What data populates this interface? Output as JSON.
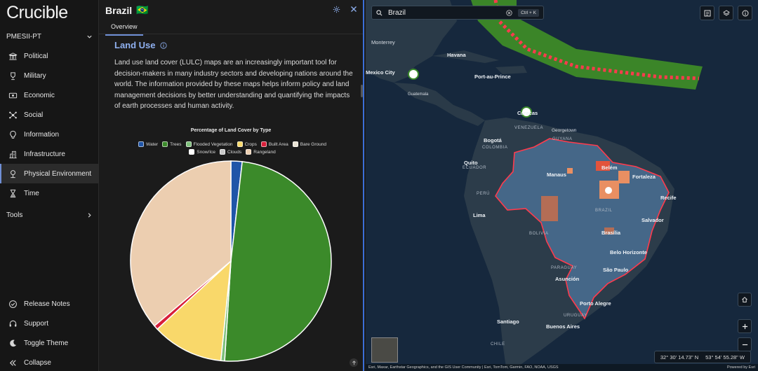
{
  "app": {
    "name": "Crucible"
  },
  "sidebar": {
    "workspace": "PMESII-PT",
    "items": [
      {
        "label": "Political",
        "icon": "columns-icon"
      },
      {
        "label": "Military",
        "icon": "trophy-icon"
      },
      {
        "label": "Economic",
        "icon": "money-icon"
      },
      {
        "label": "Social",
        "icon": "network-icon"
      },
      {
        "label": "Information",
        "icon": "lightbulb-icon"
      },
      {
        "label": "Infrastructure",
        "icon": "buildings-icon"
      },
      {
        "label": "Physical Environment",
        "icon": "landscape-icon",
        "active": true
      },
      {
        "label": "Time",
        "icon": "hourglass-icon"
      }
    ],
    "tools": "Tools",
    "bottom": [
      {
        "label": "Release Notes",
        "icon": "badge-check-icon"
      },
      {
        "label": "Support",
        "icon": "headset-icon"
      },
      {
        "label": "Toggle Theme",
        "icon": "moon-icon"
      },
      {
        "label": "Collapse",
        "icon": "chevrons-left-icon"
      }
    ]
  },
  "panel": {
    "title": "Brazil",
    "flag": "🇧🇷",
    "tab": "Overview",
    "section_title": "Land Use",
    "description": "Land use land cover (LULC) maps are an increasingly important tool for decision-makers in many industry sectors and developing nations around the world. The information provided by these maps helps inform policy and land management decisions by better understanding and quantifying the impacts of earth processes and human activity."
  },
  "chart_data": {
    "type": "pie",
    "title": "Percentage of Land Cover by Type",
    "legend_position": "top",
    "categories": [
      "Water",
      "Trees",
      "Flooded Vegetation",
      "Crops",
      "Built Area",
      "Bare Ground",
      "Snow/Ice",
      "Clouds",
      "Rangeland"
    ],
    "values": [
      1.8,
      49.2,
      0.6,
      11.5,
      0.7,
      0.0,
      0.0,
      0.0,
      36.2
    ],
    "colors": [
      "#1f55a8",
      "#3b8a2a",
      "#7dbf7a",
      "#f9d86a",
      "#d81f3a",
      "#eae3d4",
      "#ffffff",
      "#c8c8c8",
      "#ecceb0"
    ]
  },
  "map": {
    "search": {
      "value": "Brazil",
      "shortcut": "Ctrl + K"
    },
    "coords": {
      "lat": "32° 30' 14.73\" N",
      "lon": "53° 54' 55.28\" W"
    },
    "attribution": "Esri, Maxar, Earthstar Geographics, and the GIS User Community | Esri, TomTom, Garmin, FAO, NOAA, USGS",
    "powered": "Powered by Esri",
    "labels": [
      {
        "text": "Monterrey",
        "kind": ""
      },
      {
        "text": "Havana",
        "kind": "city"
      },
      {
        "text": "Mexico City",
        "kind": "city"
      },
      {
        "text": "Port-au-Prince",
        "kind": "city"
      },
      {
        "text": "Guatemala",
        "kind": ""
      },
      {
        "text": "Caracas",
        "kind": "city"
      },
      {
        "text": "VENEZUELA",
        "kind": "cap"
      },
      {
        "text": "Georgetown",
        "kind": ""
      },
      {
        "text": "GUYANA",
        "kind": "cap"
      },
      {
        "text": "Bogotá",
        "kind": "city"
      },
      {
        "text": "COLOMBIA",
        "kind": "cap"
      },
      {
        "text": "Quito",
        "kind": "city"
      },
      {
        "text": "ECUADOR",
        "kind": "cap"
      },
      {
        "text": "Manaus",
        "kind": "city"
      },
      {
        "text": "Belém",
        "kind": "city"
      },
      {
        "text": "Fortaleza",
        "kind": "city"
      },
      {
        "text": "PERÚ",
        "kind": "cap"
      },
      {
        "text": "BRAZIL",
        "kind": "cap"
      },
      {
        "text": "Recife",
        "kind": "city"
      },
      {
        "text": "Lima",
        "kind": "city"
      },
      {
        "text": "Salvador",
        "kind": "city"
      },
      {
        "text": "BOLIVIA",
        "kind": "cap"
      },
      {
        "text": "Brasília",
        "kind": "city"
      },
      {
        "text": "Belo Horizonte",
        "kind": "city"
      },
      {
        "text": "PARAGUAY",
        "kind": "cap"
      },
      {
        "text": "São Paulo",
        "kind": "city"
      },
      {
        "text": "Asunción",
        "kind": "city"
      },
      {
        "text": "Porto Alegre",
        "kind": "city"
      },
      {
        "text": "URUGUAY",
        "kind": "cap"
      },
      {
        "text": "Santiago",
        "kind": "city"
      },
      {
        "text": "Buenos Aires",
        "kind": "city"
      },
      {
        "text": "CHILE",
        "kind": "cap"
      }
    ]
  }
}
